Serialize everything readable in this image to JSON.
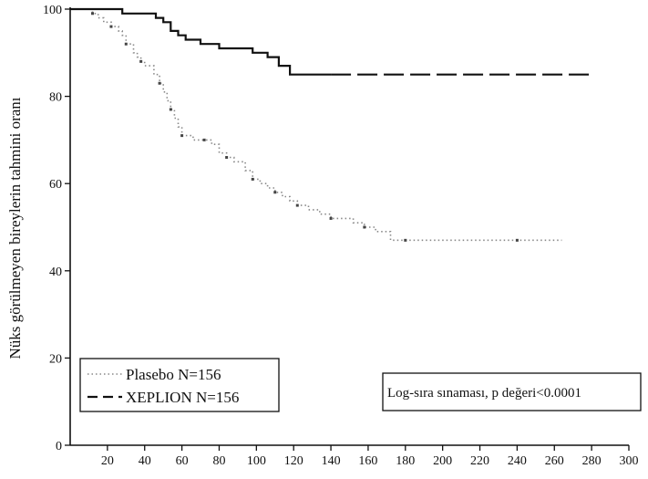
{
  "chart_data": {
    "type": "line",
    "title": "",
    "xlabel": "",
    "ylabel": "Nüks görülmeyen bireylerin tahmini oranı",
    "xlim": [
      0,
      300
    ],
    "ylim": [
      0,
      100
    ],
    "x_ticks": [
      20,
      40,
      60,
      80,
      100,
      120,
      140,
      160,
      180,
      200,
      220,
      240,
      260,
      280,
      300
    ],
    "y_ticks": [
      0,
      20,
      40,
      60,
      80,
      100
    ],
    "grid": false,
    "legend_position": "bottom-left",
    "series": [
      {
        "name": "Plasebo N=156",
        "line_style": "dotted",
        "color": "#888888",
        "x": [
          0,
          12,
          15,
          18,
          22,
          26,
          28,
          30,
          34,
          36,
          38,
          40,
          45,
          48,
          50,
          52,
          54,
          56,
          58,
          60,
          62,
          66,
          72,
          76,
          80,
          84,
          88,
          94,
          98,
          102,
          106,
          110,
          114,
          118,
          122,
          128,
          134,
          140,
          146,
          152,
          158,
          164,
          172,
          180,
          200,
          220,
          240,
          264
        ],
        "y": [
          100,
          99,
          98,
          97,
          96,
          95,
          94,
          92,
          90,
          89,
          88,
          87,
          85,
          83,
          81,
          79,
          77,
          75,
          73,
          71,
          71,
          70,
          70,
          69,
          67,
          66,
          65,
          63,
          61,
          60,
          59,
          58,
          57,
          56,
          55,
          54,
          53,
          52,
          52,
          51,
          50,
          49,
          47,
          47,
          47,
          47,
          47,
          47
        ]
      },
      {
        "name": "XEPLION N=156",
        "line_style": "dashed",
        "color": "#111111",
        "x": [
          0,
          10,
          28,
          34,
          46,
          50,
          54,
          58,
          62,
          70,
          80,
          98,
          106,
          112,
          118,
          140,
          200,
          260,
          280
        ],
        "y": [
          100,
          100,
          99,
          99,
          98,
          97,
          95,
          94,
          93,
          92,
          91,
          90,
          89,
          87,
          85,
          85,
          85,
          85,
          85
        ]
      }
    ],
    "annotations": [
      "Log-sıra sınaması, p değeri<0.0001"
    ]
  }
}
